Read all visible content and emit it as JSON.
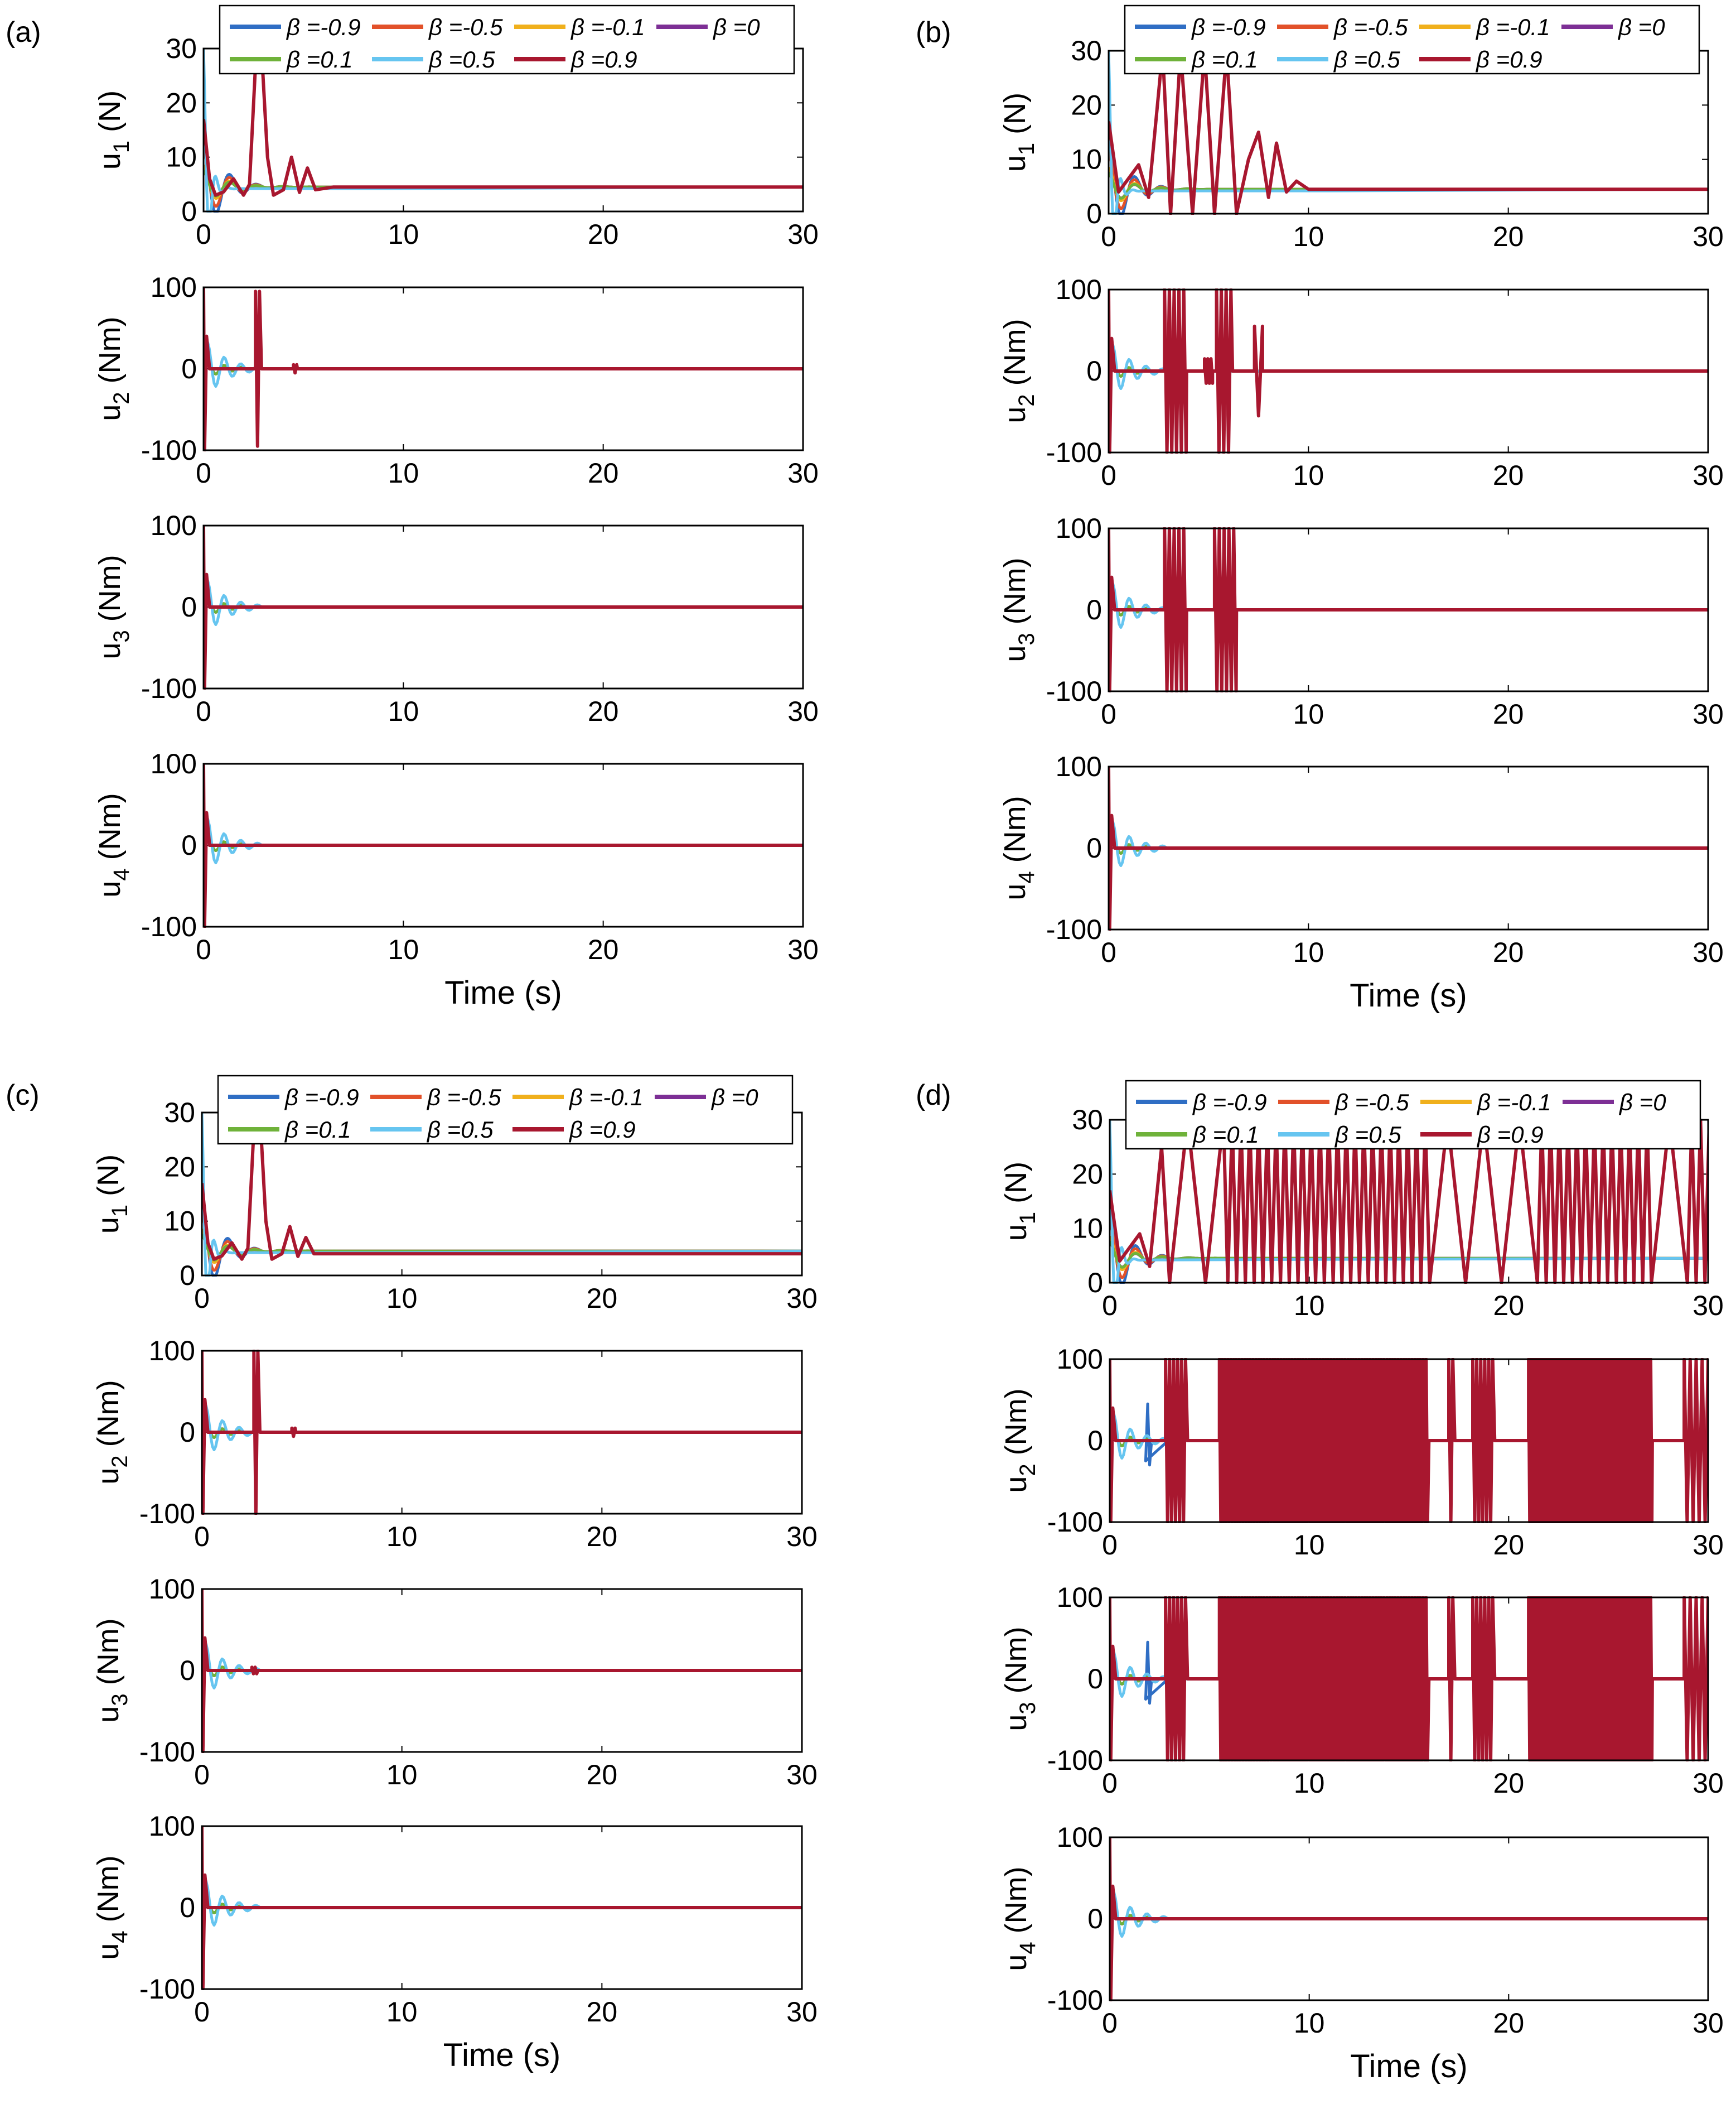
{
  "figure": {
    "panels": [
      {
        "label": "(a)"
      },
      {
        "label": "(b)"
      },
      {
        "label": "(c)"
      },
      {
        "label": "(d)"
      }
    ]
  },
  "legend": {
    "entries": [
      {
        "label": "β =-0.9",
        "color": "#2f6ec4"
      },
      {
        "label": "β =-0.5",
        "color": "#e2512a"
      },
      {
        "label": "β =-0.1",
        "color": "#f0b01c"
      },
      {
        "label": "β =0",
        "color": "#7d2f95"
      },
      {
        "label": "β =0.1",
        "color": "#6fb23a"
      },
      {
        "label": "β =0.5",
        "color": "#66c5f0"
      },
      {
        "label": "β =0.9",
        "color": "#a8172f"
      }
    ]
  },
  "chart_data": {
    "type": "line",
    "title": "",
    "xlabel": "Time (s)",
    "xlim": [
      0,
      30
    ],
    "xticks": [
      0,
      10,
      20,
      30
    ],
    "subplots": [
      {
        "ylabel_main": "u",
        "ylabel_sub": "1",
        "ylabel_unit": " (N)",
        "ylim": [
          0,
          30
        ],
        "yticks": [
          0,
          10,
          20,
          30
        ],
        "steady": 4.5
      },
      {
        "ylabel_main": "u",
        "ylabel_sub": "2",
        "ylabel_unit": " (Nm)",
        "ylim": [
          -100,
          100
        ],
        "yticks": [
          -100,
          0,
          100
        ],
        "steady": 0
      },
      {
        "ylabel_main": "u",
        "ylabel_sub": "3",
        "ylabel_unit": " (Nm)",
        "ylim": [
          -100,
          100
        ],
        "yticks": [
          -100,
          0,
          100
        ],
        "steady": 0
      },
      {
        "ylabel_main": "u",
        "ylabel_sub": "4",
        "ylabel_unit": " (Nm)",
        "ylim": [
          -100,
          100
        ],
        "yticks": [
          -100,
          0,
          100
        ],
        "steady": 0
      }
    ],
    "series": [
      {
        "name": "β =-0.9",
        "beta": -0.9
      },
      {
        "name": "β =-0.5",
        "beta": -0.5
      },
      {
        "name": "β =-0.1",
        "beta": -0.1
      },
      {
        "name": "β =0",
        "beta": 0
      },
      {
        "name": "β =0.1",
        "beta": 0.1
      },
      {
        "name": "β =0.5",
        "beta": 0.5
      },
      {
        "name": "β =0.9",
        "beta": 0.9
      }
    ],
    "panels": [
      {
        "label": "(a)",
        "settling_time_s": {
          "u1": 7,
          "u2": 5,
          "u3": 0.5,
          "u4": 0.3
        },
        "beta_0.9_u1": [
          [
            0,
            17
          ],
          [
            0.3,
            6
          ],
          [
            0.6,
            3
          ],
          [
            1.0,
            3.6
          ],
          [
            1.5,
            6
          ],
          [
            2.0,
            3
          ],
          [
            2.3,
            5
          ],
          [
            2.6,
            27
          ],
          [
            2.9,
            30
          ],
          [
            3.2,
            10
          ],
          [
            3.5,
            3
          ],
          [
            4.0,
            4
          ],
          [
            4.4,
            10
          ],
          [
            4.8,
            3.5
          ],
          [
            5.2,
            8
          ],
          [
            5.6,
            4
          ],
          [
            6.5,
            4.5
          ],
          [
            30,
            4.5
          ]
        ]
      },
      {
        "label": "(b)",
        "settling_time_s": {
          "u1": 11,
          "u2": 8,
          "u3": 6.5,
          "u4": 0.3
        },
        "beta_0.9_u1": [
          [
            0,
            17
          ],
          [
            0.5,
            4
          ],
          [
            1.5,
            9
          ],
          [
            2.0,
            3
          ],
          [
            2.7,
            30
          ],
          [
            3.1,
            0
          ],
          [
            3.6,
            30
          ],
          [
            4.2,
            0
          ],
          [
            4.8,
            30
          ],
          [
            5.3,
            0
          ],
          [
            5.9,
            30
          ],
          [
            6.4,
            0
          ],
          [
            7.0,
            10
          ],
          [
            7.5,
            15
          ],
          [
            8.0,
            3
          ],
          [
            8.4,
            13
          ],
          [
            8.9,
            4
          ],
          [
            9.4,
            6
          ],
          [
            10.0,
            4.5
          ],
          [
            30,
            4.5
          ]
        ]
      },
      {
        "label": "(c)",
        "settling_time_s": {
          "u1": 8,
          "u2": 5,
          "u3": 3,
          "u4": 0.3
        },
        "beta_0.9_u1": [
          [
            0,
            17
          ],
          [
            0.3,
            6
          ],
          [
            0.6,
            3
          ],
          [
            1.0,
            3.6
          ],
          [
            1.5,
            6
          ],
          [
            2.0,
            3
          ],
          [
            2.3,
            5
          ],
          [
            2.6,
            27
          ],
          [
            2.9,
            30
          ],
          [
            3.2,
            10
          ],
          [
            3.5,
            3
          ],
          [
            4.0,
            4
          ],
          [
            4.4,
            9
          ],
          [
            4.8,
            3.5
          ],
          [
            5.2,
            7
          ],
          [
            5.6,
            4
          ],
          [
            7.0,
            4
          ],
          [
            30,
            4
          ]
        ]
      },
      {
        "label": "(d)",
        "settling_time_s": {
          "u1": null,
          "u2": null,
          "u3": null,
          "u4": 0.3
        },
        "beta_0.9_u1_note": "unstable: oscillates across full range [0,30] after 2.5 s"
      }
    ]
  }
}
